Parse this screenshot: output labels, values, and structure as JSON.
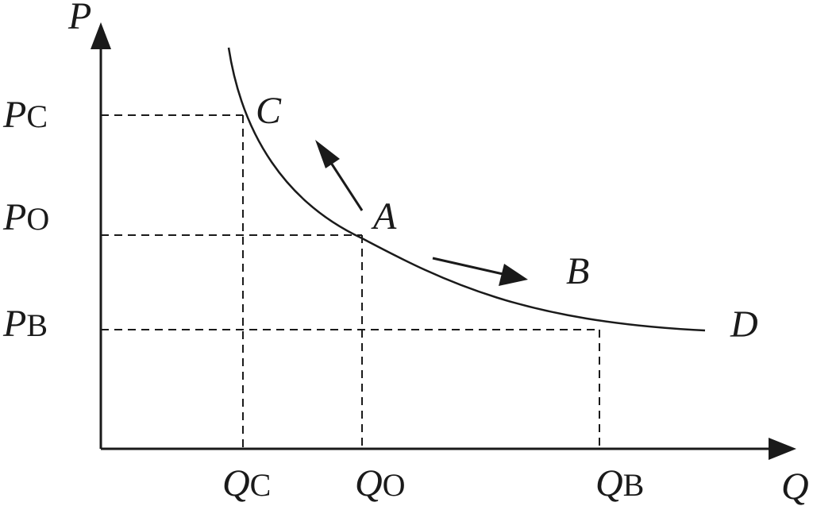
{
  "axes": {
    "y_label": "P",
    "x_label": "Q"
  },
  "price_labels": {
    "pc_main": "P",
    "pc_sub": "C",
    "po_main": "P",
    "po_sub": "O",
    "pb_main": "P",
    "pb_sub": "B"
  },
  "quantity_labels": {
    "qc_main": "Q",
    "qc_sub": "C",
    "qo_main": "Q",
    "qo_sub": "O",
    "qb_main": "Q",
    "qb_sub": "B"
  },
  "points": {
    "c": "C",
    "a": "A",
    "b": "B",
    "d": "D"
  },
  "colors": {
    "ink": "#1a1a1a",
    "background": "#ffffff"
  }
}
